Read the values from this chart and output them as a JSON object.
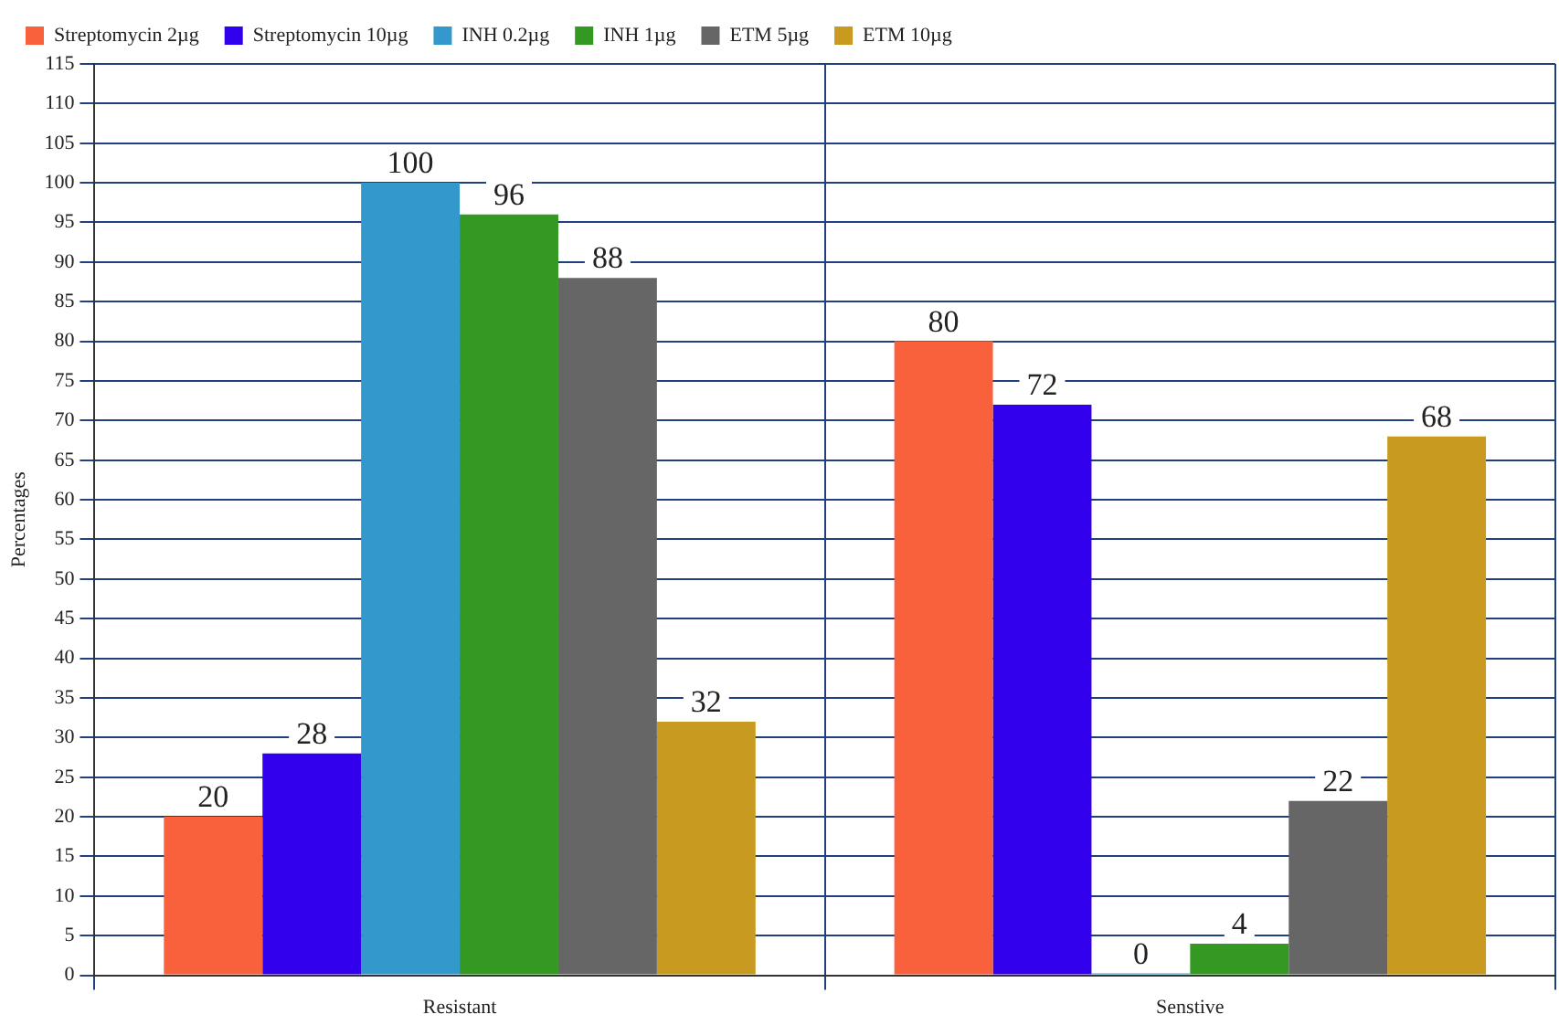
{
  "chart_data": {
    "type": "bar",
    "ylabel": "Percentages",
    "categories": [
      "Resistant",
      "Senstive"
    ],
    "series": [
      {
        "name": "Streptomycin 2µg",
        "color": "#f9603c",
        "values": [
          20,
          80
        ]
      },
      {
        "name": "Streptomycin 10µg",
        "color": "#3300ee",
        "values": [
          28,
          72
        ]
      },
      {
        "name": "INH 0.2µg",
        "color": "#3399cc",
        "values": [
          100,
          0
        ]
      },
      {
        "name": "INH 1µg",
        "color": "#339922",
        "values": [
          96,
          4
        ]
      },
      {
        "name": "ETM 5µg",
        "color": "#666666",
        "values": [
          88,
          22
        ]
      },
      {
        "name": "ETM 10µg",
        "color": "#c89a20",
        "values": [
          32,
          68
        ]
      }
    ],
    "ylim": [
      0,
      115
    ],
    "yticks": [
      0,
      5,
      10,
      15,
      20,
      25,
      30,
      35,
      40,
      45,
      50,
      55,
      60,
      65,
      70,
      75,
      80,
      85,
      90,
      95,
      100,
      105,
      110,
      115
    ],
    "grid": true,
    "legend": "top left",
    "data_labels": true
  }
}
